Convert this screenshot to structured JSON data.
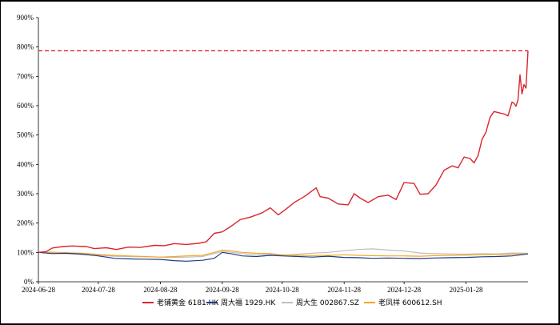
{
  "chart_data": {
    "type": "line",
    "title": "",
    "xlabel": "",
    "ylabel": "",
    "ylim": [
      0,
      900
    ],
    "yticks": [
      "0%",
      "100%",
      "200%",
      "300%",
      "400%",
      "500%",
      "600%",
      "700%",
      "800%",
      "900%"
    ],
    "x_ticks": [
      "2024-06-28",
      "2024-07-28",
      "2024-08-28",
      "2024-09-28",
      "2024-10-28",
      "2024-11-28",
      "2024-12-28",
      "2025-01-28"
    ],
    "x_start": "2024-06-28",
    "x_end": "2025-02-28",
    "reference_line": {
      "value": 787,
      "style": "dashed",
      "color": "#d9262d"
    },
    "grid": false,
    "legend_position": "bottom",
    "series": [
      {
        "name": "老铺黄金 6181.HK",
        "color": "#d9262d",
        "points": [
          [
            "2024-06-28",
            100
          ],
          [
            "2024-07-02",
            103
          ],
          [
            "2024-07-05",
            115
          ],
          [
            "2024-07-10",
            120
          ],
          [
            "2024-07-15",
            122
          ],
          [
            "2024-07-22",
            120
          ],
          [
            "2024-07-26",
            113
          ],
          [
            "2024-08-01",
            116
          ],
          [
            "2024-08-06",
            110
          ],
          [
            "2024-08-12",
            118
          ],
          [
            "2024-08-18",
            117
          ],
          [
            "2024-08-25",
            124
          ],
          [
            "2024-08-30",
            123
          ],
          [
            "2024-09-04",
            130
          ],
          [
            "2024-09-10",
            127
          ],
          [
            "2024-09-16",
            131
          ],
          [
            "2024-09-20",
            136
          ],
          [
            "2024-09-24",
            165
          ],
          [
            "2024-09-28",
            170
          ],
          [
            "2024-10-02",
            187
          ],
          [
            "2024-10-07",
            212
          ],
          [
            "2024-10-12",
            220
          ],
          [
            "2024-10-18",
            235
          ],
          [
            "2024-10-22",
            252
          ],
          [
            "2024-10-26",
            228
          ],
          [
            "2024-10-30",
            248
          ],
          [
            "2024-11-03",
            270
          ],
          [
            "2024-11-08",
            290
          ],
          [
            "2024-11-12",
            310
          ],
          [
            "2024-11-14",
            320
          ],
          [
            "2024-11-16",
            290
          ],
          [
            "2024-11-20",
            285
          ],
          [
            "2024-11-25",
            265
          ],
          [
            "2024-11-30",
            262
          ],
          [
            "2024-12-03",
            300
          ],
          [
            "2024-12-06",
            285
          ],
          [
            "2024-12-10",
            270
          ],
          [
            "2024-12-15",
            290
          ],
          [
            "2024-12-20",
            295
          ],
          [
            "2024-12-24",
            280
          ],
          [
            "2024-12-28",
            338
          ],
          [
            "2025-01-02",
            335
          ],
          [
            "2025-01-05",
            298
          ],
          [
            "2025-01-09",
            300
          ],
          [
            "2025-01-13",
            330
          ],
          [
            "2025-01-17",
            380
          ],
          [
            "2025-01-21",
            395
          ],
          [
            "2025-01-24",
            388
          ],
          [
            "2025-01-27",
            425
          ],
          [
            "2025-01-30",
            420
          ],
          [
            "2025-02-01",
            405
          ],
          [
            "2025-02-03",
            430
          ],
          [
            "2025-02-05",
            485
          ],
          [
            "2025-02-07",
            510
          ],
          [
            "2025-02-09",
            560
          ],
          [
            "2025-02-11",
            580
          ],
          [
            "2025-02-14",
            575
          ],
          [
            "2025-02-16",
            572
          ],
          [
            "2025-02-18",
            565
          ],
          [
            "2025-02-20",
            612
          ],
          [
            "2025-02-21",
            608
          ],
          [
            "2025-02-22",
            598
          ],
          [
            "2025-02-23",
            620
          ],
          [
            "2025-02-24",
            705
          ],
          [
            "2025-02-25",
            640
          ],
          [
            "2025-02-26",
            672
          ],
          [
            "2025-02-27",
            660
          ],
          [
            "2025-02-28",
            787
          ]
        ]
      },
      {
        "name": "周大福 1929.HK",
        "color": "#1f3c88",
        "points": [
          [
            "2024-06-28",
            100
          ],
          [
            "2024-07-05",
            96
          ],
          [
            "2024-07-12",
            97
          ],
          [
            "2024-07-20",
            94
          ],
          [
            "2024-07-28",
            88
          ],
          [
            "2024-08-05",
            80
          ],
          [
            "2024-08-12",
            78
          ],
          [
            "2024-08-20",
            77
          ],
          [
            "2024-08-28",
            76
          ],
          [
            "2024-09-04",
            72
          ],
          [
            "2024-09-10",
            70
          ],
          [
            "2024-09-18",
            73
          ],
          [
            "2024-09-24",
            80
          ],
          [
            "2024-09-28",
            100
          ],
          [
            "2024-10-03",
            95
          ],
          [
            "2024-10-08",
            88
          ],
          [
            "2024-10-15",
            86
          ],
          [
            "2024-10-22",
            90
          ],
          [
            "2024-10-28",
            88
          ],
          [
            "2024-11-05",
            86
          ],
          [
            "2024-11-12",
            84
          ],
          [
            "2024-11-20",
            87
          ],
          [
            "2024-11-28",
            83
          ],
          [
            "2024-12-05",
            82
          ],
          [
            "2024-12-12",
            80
          ],
          [
            "2024-12-20",
            81
          ],
          [
            "2024-12-28",
            80
          ],
          [
            "2025-01-05",
            79
          ],
          [
            "2025-01-12",
            81
          ],
          [
            "2025-01-20",
            82
          ],
          [
            "2025-01-28",
            83
          ],
          [
            "2025-02-05",
            85
          ],
          [
            "2025-02-12",
            86
          ],
          [
            "2025-02-20",
            88
          ],
          [
            "2025-02-28",
            95
          ]
        ]
      },
      {
        "name": "周大生 002867.SZ",
        "color": "#bfbfbf",
        "points": [
          [
            "2024-06-28",
            100
          ],
          [
            "2024-07-05",
            98
          ],
          [
            "2024-07-12",
            96
          ],
          [
            "2024-07-20",
            93
          ],
          [
            "2024-07-28",
            90
          ],
          [
            "2024-08-05",
            87
          ],
          [
            "2024-08-12",
            86
          ],
          [
            "2024-08-20",
            85
          ],
          [
            "2024-08-28",
            84
          ],
          [
            "2024-09-04",
            83
          ],
          [
            "2024-09-10",
            84
          ],
          [
            "2024-09-18",
            86
          ],
          [
            "2024-09-24",
            96
          ],
          [
            "2024-09-28",
            103
          ],
          [
            "2024-10-03",
            100
          ],
          [
            "2024-10-08",
            96
          ],
          [
            "2024-10-15",
            92
          ],
          [
            "2024-10-22",
            93
          ],
          [
            "2024-10-28",
            90
          ],
          [
            "2024-11-05",
            94
          ],
          [
            "2024-11-12",
            97
          ],
          [
            "2024-11-20",
            100
          ],
          [
            "2024-11-28",
            106
          ],
          [
            "2024-12-05",
            110
          ],
          [
            "2024-12-12",
            112
          ],
          [
            "2024-12-20",
            108
          ],
          [
            "2024-12-28",
            105
          ],
          [
            "2025-01-05",
            98
          ],
          [
            "2025-01-12",
            96
          ],
          [
            "2025-01-20",
            95
          ],
          [
            "2025-01-28",
            94
          ],
          [
            "2025-02-05",
            96
          ],
          [
            "2025-02-12",
            95
          ],
          [
            "2025-02-20",
            98
          ],
          [
            "2025-02-28",
            97
          ]
        ]
      },
      {
        "name": "老凤祥 600612.SH",
        "color": "#f5a623",
        "points": [
          [
            "2024-06-28",
            100
          ],
          [
            "2024-07-05",
            101
          ],
          [
            "2024-07-12",
            99
          ],
          [
            "2024-07-20",
            97
          ],
          [
            "2024-07-28",
            93
          ],
          [
            "2024-08-05",
            90
          ],
          [
            "2024-08-12",
            88
          ],
          [
            "2024-08-20",
            86
          ],
          [
            "2024-08-28",
            84
          ],
          [
            "2024-09-04",
            86
          ],
          [
            "2024-09-10",
            88
          ],
          [
            "2024-09-18",
            90
          ],
          [
            "2024-09-24",
            100
          ],
          [
            "2024-09-28",
            108
          ],
          [
            "2024-10-03",
            105
          ],
          [
            "2024-10-08",
            100
          ],
          [
            "2024-10-15",
            97
          ],
          [
            "2024-10-22",
            96
          ],
          [
            "2024-10-28",
            92
          ],
          [
            "2024-11-05",
            90
          ],
          [
            "2024-11-12",
            89
          ],
          [
            "2024-11-20",
            90
          ],
          [
            "2024-11-28",
            92
          ],
          [
            "2024-12-05",
            90
          ],
          [
            "2024-12-12",
            89
          ],
          [
            "2024-12-20",
            88
          ],
          [
            "2024-12-28",
            88
          ],
          [
            "2025-01-05",
            87
          ],
          [
            "2025-01-12",
            89
          ],
          [
            "2025-01-20",
            90
          ],
          [
            "2025-01-28",
            91
          ],
          [
            "2025-02-05",
            92
          ],
          [
            "2025-02-12",
            93
          ],
          [
            "2025-02-20",
            94
          ],
          [
            "2025-02-28",
            96
          ]
        ]
      }
    ]
  }
}
